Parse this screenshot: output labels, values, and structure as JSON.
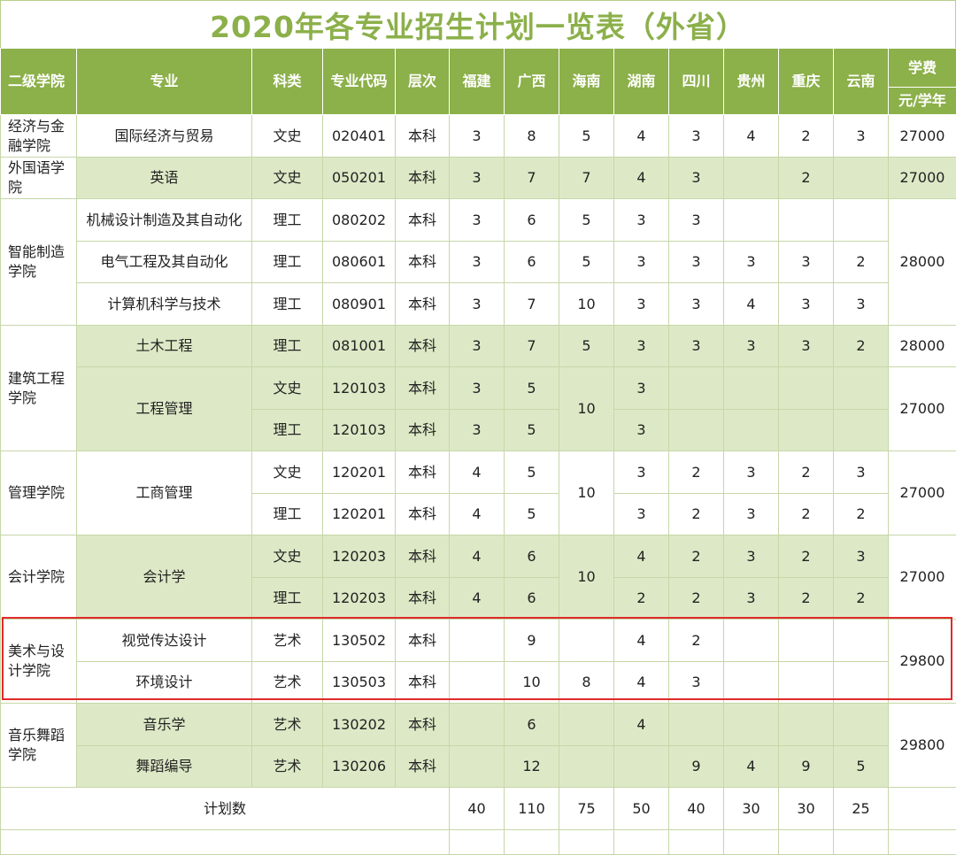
{
  "title": "2020年各专业招生计划一览表（外省）",
  "headers": {
    "college": "二级学院",
    "major": "专业",
    "category": "科类",
    "code": "专业代码",
    "level": "层次",
    "provinces": [
      "福建",
      "广西",
      "海南",
      "湖南",
      "四川",
      "贵州",
      "重庆",
      "云南"
    ],
    "fee_top": "学费",
    "fee_unit": "元/学年"
  },
  "colleges": {
    "economics": "经济与金融学院",
    "foreign": "外国语学院",
    "manufacturing": "智能制造学院",
    "architecture": "建筑工程学院",
    "management": "管理学院",
    "accounting": "会计学院",
    "art": "美术与设计学院",
    "music": "音乐舞蹈学院"
  },
  "rows": [
    {
      "major": "国际经济与贸易",
      "category": "文史",
      "code": "020401",
      "level": "本科",
      "v": [
        "3",
        "8",
        "5",
        "4",
        "3",
        "4",
        "2",
        "3"
      ],
      "fee": "27000"
    },
    {
      "major": "英语",
      "category": "文史",
      "code": "050201",
      "level": "本科",
      "v": [
        "3",
        "7",
        "7",
        "4",
        "3",
        "",
        "2",
        ""
      ],
      "fee": "27000"
    },
    {
      "major": "机械设计制造及其自动化",
      "category": "理工",
      "code": "080202",
      "level": "本科",
      "v": [
        "3",
        "6",
        "5",
        "3",
        "3",
        "",
        "",
        ""
      ],
      "fee": "28000"
    },
    {
      "major": "电气工程及其自动化",
      "category": "理工",
      "code": "080601",
      "level": "本科",
      "v": [
        "3",
        "6",
        "5",
        "3",
        "3",
        "3",
        "3",
        "2"
      ]
    },
    {
      "major": "计算机科学与技术",
      "category": "理工",
      "code": "080901",
      "level": "本科",
      "v": [
        "3",
        "7",
        "10",
        "3",
        "3",
        "4",
        "3",
        "3"
      ]
    },
    {
      "major": "土木工程",
      "category": "理工",
      "code": "081001",
      "level": "本科",
      "v": [
        "3",
        "7",
        "5",
        "3",
        "3",
        "3",
        "3",
        "2"
      ],
      "fee": "28000"
    },
    {
      "major": "工程管理",
      "category": "文史",
      "code": "120103",
      "level": "本科",
      "v": [
        "3",
        "5",
        "10",
        "3",
        "",
        "",
        "",
        ""
      ],
      "fee": "27000"
    },
    {
      "category": "理工",
      "code": "120103",
      "level": "本科",
      "v": [
        "3",
        "5",
        "",
        "3",
        "",
        "",
        "",
        ""
      ]
    },
    {
      "major": "工商管理",
      "category": "文史",
      "code": "120201",
      "level": "本科",
      "v": [
        "4",
        "5",
        "10",
        "3",
        "2",
        "3",
        "2",
        "3"
      ],
      "fee": "27000"
    },
    {
      "category": "理工",
      "code": "120201",
      "level": "本科",
      "v": [
        "4",
        "5",
        "",
        "3",
        "2",
        "3",
        "2",
        "2"
      ]
    },
    {
      "major": "会计学",
      "category": "文史",
      "code": "120203",
      "level": "本科",
      "v": [
        "4",
        "6",
        "10",
        "4",
        "2",
        "3",
        "2",
        "3"
      ],
      "fee": "27000"
    },
    {
      "category": "理工",
      "code": "120203",
      "level": "本科",
      "v": [
        "4",
        "6",
        "",
        "2",
        "2",
        "3",
        "2",
        "2"
      ]
    },
    {
      "major": "视觉传达设计",
      "category": "艺术",
      "code": "130502",
      "level": "本科",
      "v": [
        "",
        "9",
        "",
        "4",
        "2",
        "",
        "",
        ""
      ],
      "fee": "29800"
    },
    {
      "major": "环境设计",
      "category": "艺术",
      "code": "130503",
      "level": "本科",
      "v": [
        "",
        "10",
        "8",
        "4",
        "3",
        "",
        "",
        ""
      ]
    },
    {
      "major": "音乐学",
      "category": "艺术",
      "code": "130202",
      "level": "本科",
      "v": [
        "",
        "6",
        "",
        "4",
        "",
        "",
        "",
        ""
      ],
      "fee": "29800"
    },
    {
      "major": "舞蹈编导",
      "category": "艺术",
      "code": "130206",
      "level": "本科",
      "v": [
        "",
        "12",
        "",
        "",
        "9",
        "4",
        "9",
        "5"
      ]
    }
  ],
  "total": {
    "label": "计划数",
    "values": [
      "40",
      "110",
      "75",
      "50",
      "40",
      "30",
      "30",
      "25"
    ]
  },
  "colors": {
    "title": "#8cb04a",
    "header_bg": "#8cb04a",
    "band_green": "#dde9c6",
    "border": "#c6d7a8",
    "highlight": "#e02b2b"
  }
}
